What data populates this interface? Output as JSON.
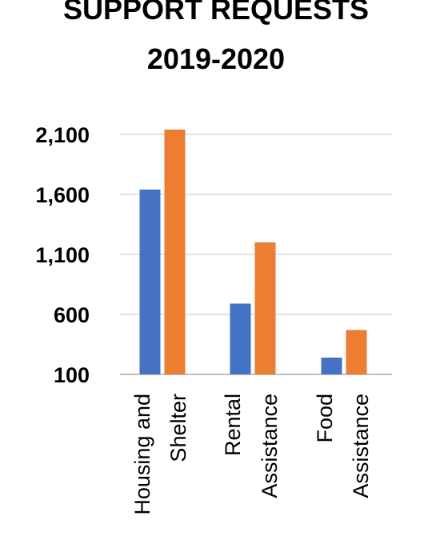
{
  "chart_data": {
    "type": "bar",
    "title_lines": [
      "SUPPORT REQUESTS",
      "2019-2020"
    ],
    "categories": [
      [
        "Housing and",
        "Shelter"
      ],
      [
        "Rental",
        "Assistance"
      ],
      [
        "Food",
        "Assistance"
      ]
    ],
    "series": [
      {
        "values": [
          1640,
          690,
          240
        ],
        "color": "#4472C4"
      },
      {
        "values": [
          2140,
          1200,
          470
        ],
        "color": "#ED7D31"
      }
    ],
    "yticks": [
      "2,100",
      "1,600",
      "1,100",
      "600",
      "100"
    ],
    "ylim": [
      100,
      2100
    ],
    "grid": true,
    "legend": "none"
  }
}
